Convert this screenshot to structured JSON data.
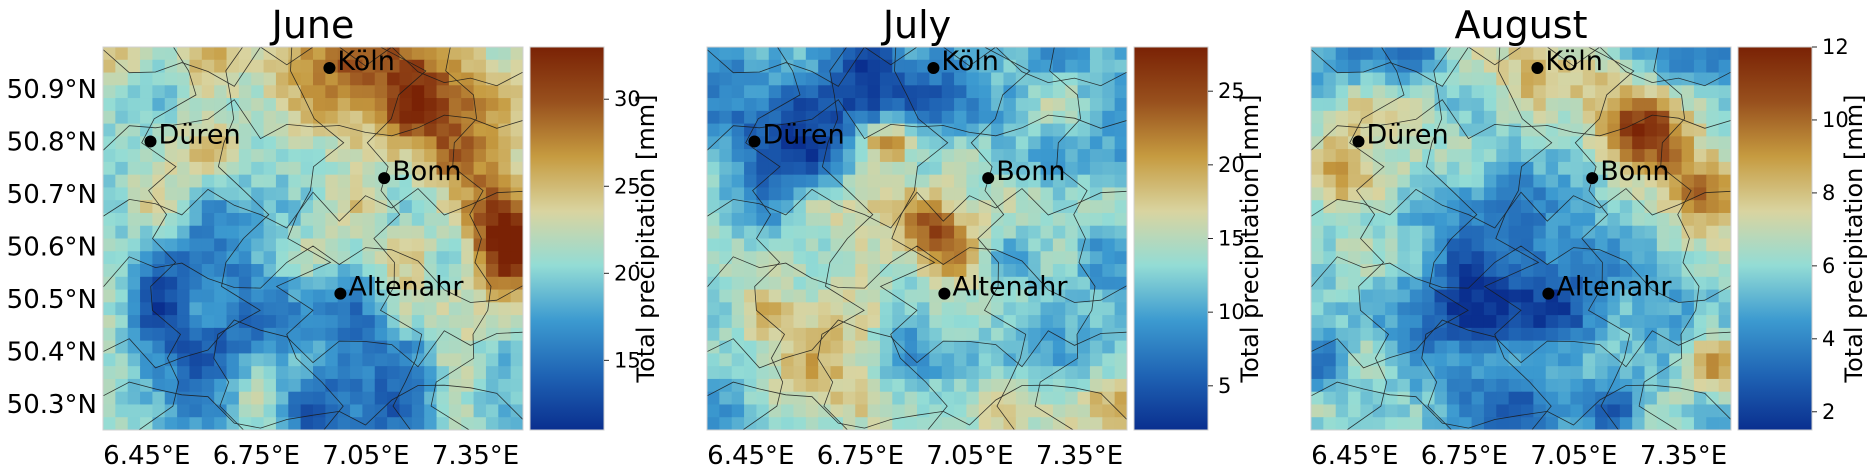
{
  "panels": [
    {
      "title": "June",
      "colorbar": {
        "label": "Total precipitation [mm]",
        "ticks": [
          "15",
          "20",
          "25",
          "30"
        ],
        "range": [
          11,
          33
        ],
        "tick_values": [
          15,
          20,
          25,
          30
        ]
      },
      "show_lat_labels": true,
      "precip_mean": 22,
      "hotspots": [
        {
          "lon": 6.95,
          "lat": 50.93,
          "amp": 6,
          "sigma": 0.15
        },
        {
          "lon": 7.25,
          "lat": 50.88,
          "amp": 7,
          "sigma": 0.12
        },
        {
          "lon": 7.46,
          "lat": 50.59,
          "amp": 11,
          "sigma": 0.08
        },
        {
          "lon": 7.35,
          "lat": 50.68,
          "amp": 6,
          "sigma": 0.08
        },
        {
          "lon": 6.6,
          "lat": 50.45,
          "amp": -8,
          "sigma": 0.2
        },
        {
          "lon": 7.05,
          "lat": 50.32,
          "amp": -7,
          "sigma": 0.2
        },
        {
          "lon": 6.75,
          "lat": 50.33,
          "amp": 5,
          "sigma": 0.08
        }
      ]
    },
    {
      "title": "July",
      "colorbar": {
        "label": "Total precipitation [mm]",
        "ticks": [
          "5",
          "10",
          "15",
          "20",
          "25"
        ],
        "range": [
          2,
          28
        ],
        "tick_values": [
          5,
          10,
          15,
          20,
          25
        ]
      },
      "show_lat_labels": false,
      "precip_mean": 12,
      "hotspots": [
        {
          "lon": 6.95,
          "lat": 50.62,
          "amp": 12,
          "sigma": 0.08
        },
        {
          "lon": 6.83,
          "lat": 50.8,
          "amp": 12,
          "sigma": 0.05
        },
        {
          "lon": 6.6,
          "lat": 50.38,
          "amp": 9,
          "sigma": 0.12
        },
        {
          "lon": 6.85,
          "lat": 50.92,
          "amp": -8,
          "sigma": 0.14
        },
        {
          "lon": 6.5,
          "lat": 50.8,
          "amp": -7,
          "sigma": 0.12
        },
        {
          "lon": 7.45,
          "lat": 50.3,
          "amp": 7,
          "sigma": 0.07
        }
      ]
    },
    {
      "title": "August",
      "colorbar": {
        "label": "Total precipitation [mm]",
        "ticks": [
          "2",
          "4",
          "6",
          "8",
          "10",
          "12"
        ],
        "range": [
          1.5,
          12
        ],
        "tick_values": [
          2,
          4,
          6,
          8,
          10,
          12
        ]
      },
      "show_lat_labels": false,
      "precip_mean": 5,
      "hotspots": [
        {
          "lon": 7.25,
          "lat": 50.83,
          "amp": 6.5,
          "sigma": 0.09
        },
        {
          "lon": 7.0,
          "lat": 50.95,
          "amp": 4,
          "sigma": 0.12
        },
        {
          "lon": 6.43,
          "lat": 50.75,
          "amp": 5,
          "sigma": 0.1
        },
        {
          "lon": 7.42,
          "lat": 50.7,
          "amp": 4.5,
          "sigma": 0.08
        },
        {
          "lon": 6.85,
          "lat": 50.45,
          "amp": -2.5,
          "sigma": 0.18
        },
        {
          "lon": 7.45,
          "lat": 50.35,
          "amp": 3,
          "sigma": 0.08
        }
      ]
    }
  ],
  "x_ticks": [
    {
      "label": "6.45°E",
      "value": 6.45
    },
    {
      "label": "6.75°E",
      "value": 6.75
    },
    {
      "label": "7.05°E",
      "value": 7.05
    },
    {
      "label": "7.35°E",
      "value": 7.35
    }
  ],
  "y_ticks": [
    {
      "label": "50.9°N",
      "value": 50.9
    },
    {
      "label": "50.8°N",
      "value": 50.8
    },
    {
      "label": "50.7°N",
      "value": 50.7
    },
    {
      "label": "50.6°N",
      "value": 50.6
    },
    {
      "label": "50.5°N",
      "value": 50.5
    },
    {
      "label": "50.4°N",
      "value": 50.4
    },
    {
      "label": "50.3°N",
      "value": 50.3
    }
  ],
  "extent": {
    "lon": [
      6.33,
      7.48
    ],
    "lat": [
      50.25,
      50.98
    ]
  },
  "cities": [
    {
      "name": "Köln",
      "lon": 6.95,
      "lat": 50.94
    },
    {
      "name": "Düren",
      "lon": 6.46,
      "lat": 50.8
    },
    {
      "name": "Bonn",
      "lon": 7.1,
      "lat": 50.73
    },
    {
      "name": "Altenahr",
      "lon": 6.98,
      "lat": 50.51
    }
  ],
  "colormap": [
    "#0a2f8f",
    "#1f63b4",
    "#3c9ad0",
    "#93dcd5",
    "#d9d4a0",
    "#c69b40",
    "#98501d",
    "#7a2205"
  ],
  "colors": {
    "border": "#1a1a1a",
    "city_marker": "#000000",
    "frame": "#d0d0d0"
  }
}
